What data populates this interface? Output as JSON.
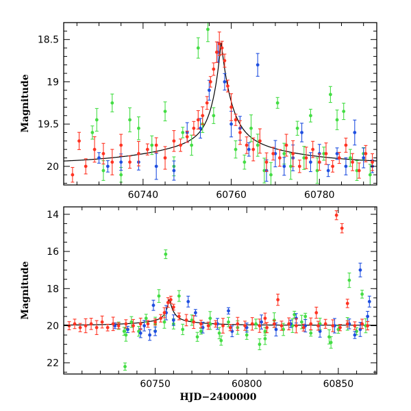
{
  "chart_data": [
    {
      "type": "scatter",
      "title": "",
      "xlabel": "",
      "ylabel": "Magnitude",
      "xlim": [
        60722,
        60793
      ],
      "ylim": [
        20.22,
        18.3
      ],
      "y_inverted": true,
      "grid": false,
      "x_ticks": [
        "60740",
        "60760",
        "60780"
      ],
      "y_ticks": [
        "18.5",
        "19",
        "19.5",
        "20"
      ],
      "colors": {
        "green": "#44dd44",
        "blue": "#1f4fe0",
        "red": "#ff3322",
        "model": "#000000"
      },
      "model_curve": {
        "baseline": 19.97,
        "peak_x": 60757.7,
        "peak_y": 18.52,
        "rise_tau": 1.9,
        "fall_tau": 2.3,
        "shoulder_amp": 0.42,
        "shoulder_tau": 14
      },
      "series": [
        {
          "color": "green",
          "x": [
            60728.5,
            60729.5,
            60731,
            60733,
            60735,
            60737,
            60739,
            60742,
            60745,
            60747,
            60749,
            60751,
            60752.5,
            60753.5,
            60754.7,
            60756,
            60761,
            60763,
            60764.5,
            60766,
            60767.5,
            60769,
            60770.5,
            60772,
            60773.5,
            60775,
            60776.5,
            60778,
            60779.5,
            60781,
            60782.5,
            60784,
            60785.5,
            60787,
            60788.5,
            60790,
            60791.5
          ],
          "y": [
            19.6,
            19.45,
            20.05,
            19.25,
            20.1,
            19.45,
            19.55,
            19.75,
            19.35,
            20.0,
            19.6,
            19.75,
            18.6,
            19.5,
            18.38,
            19.4,
            19.8,
            19.95,
            19.55,
            19.75,
            20.05,
            20.1,
            19.25,
            19.85,
            20.0,
            19.55,
            19.9,
            19.4,
            20.05,
            19.85,
            19.15,
            19.45,
            19.35,
            19.9,
            20.05,
            19.85,
            20.1
          ]
        },
        {
          "color": "blue",
          "x": [
            60730,
            60732,
            60735,
            60739,
            60743,
            60747,
            60750,
            60753,
            60755,
            60757,
            60758.5,
            60760,
            60762,
            60764,
            60766,
            60768,
            60770,
            60772,
            60774,
            60776,
            60778,
            60780,
            60782,
            60784,
            60786,
            60788,
            60790,
            60792
          ],
          "y": [
            19.9,
            20.0,
            19.95,
            19.95,
            20.0,
            20.05,
            19.6,
            19.55,
            19.1,
            18.65,
            19.0,
            19.5,
            19.55,
            19.8,
            18.8,
            20.05,
            19.85,
            20.0,
            19.9,
            19.6,
            19.95,
            19.85,
            20.05,
            19.85,
            20.0,
            19.6,
            19.9,
            20.0
          ]
        },
        {
          "color": "red",
          "x": [
            60724,
            60725.5,
            60727,
            60729,
            60731,
            60733,
            60735,
            60737,
            60739,
            60741,
            60743,
            60745,
            60747,
            60748.5,
            60750,
            60751.5,
            60752.5,
            60753.5,
            60754.5,
            60755.3,
            60756,
            60756.7,
            60757.3,
            60757.9,
            60758.5,
            60759.2,
            60760,
            60761,
            60762,
            60763.5,
            60765,
            60766.5,
            60768,
            60769.5,
            60771,
            60772.5,
            60774,
            60775.5,
            60777,
            60778.5,
            60780,
            60781.5,
            60783,
            60784.5,
            60786,
            60787.5,
            60789,
            60790.5,
            60792
          ],
          "y": [
            20.1,
            19.7,
            20.0,
            19.8,
            19.85,
            19.95,
            19.75,
            19.95,
            19.85,
            19.8,
            19.75,
            19.9,
            19.7,
            19.75,
            19.65,
            19.55,
            19.45,
            19.4,
            19.25,
            19.0,
            18.85,
            18.65,
            18.55,
            18.6,
            18.75,
            19.05,
            19.3,
            19.45,
            19.6,
            19.75,
            19.8,
            19.7,
            19.95,
            19.85,
            19.9,
            19.75,
            19.85,
            20.0,
            19.9,
            19.8,
            19.95,
            19.85,
            20.0,
            19.9,
            19.75,
            19.95,
            20.05,
            19.85,
            19.95
          ]
        }
      ]
    },
    {
      "type": "scatter",
      "title": "",
      "xlabel": "HJD−2400000",
      "ylabel": "Magnitude",
      "xlim": [
        60700,
        60871
      ],
      "ylim": [
        22.6,
        13.6
      ],
      "y_inverted": true,
      "grid": false,
      "x_ticks": [
        "60750",
        "60800",
        "60850"
      ],
      "y_ticks": [
        "14",
        "16",
        "18",
        "20",
        "22"
      ],
      "colors": {
        "green": "#44dd44",
        "blue": "#1f4fe0",
        "red": "#ff3322",
        "model": "#000000"
      },
      "model_curve": {
        "baseline": 19.97,
        "peak_x": 60757.7,
        "peak_y": 18.52,
        "rise_tau": 1.9,
        "fall_tau": 2.3,
        "shoulder_amp": 0.42,
        "shoulder_tau": 14
      },
      "series": [
        {
          "color": "green",
          "x": [
            60730,
            60734,
            60737,
            60741,
            60745,
            60750,
            60755,
            60760,
            60765,
            60770,
            60775,
            60780,
            60785,
            60790,
            60795,
            60800,
            60805,
            60810,
            60815,
            60820,
            60825,
            60830,
            60835,
            60840,
            60845,
            60850,
            60855,
            60860,
            60865,
            60733.5,
            60755.7,
            60763,
            60773,
            60786,
            60807,
            60826,
            60846,
            60856,
            60863,
            60733,
            60752,
            60780,
            60810,
            60832
          ],
          "y": [
            20.0,
            20.5,
            19.8,
            20.3,
            19.6,
            19.9,
            19.8,
            19.9,
            20.2,
            19.7,
            20.3,
            19.9,
            20.4,
            19.8,
            20.1,
            20.5,
            19.9,
            20.3,
            19.7,
            20.2,
            20.0,
            19.8,
            20.4,
            19.9,
            20.6,
            20.2,
            19.9,
            20.3,
            20.0,
            22.2,
            16.15,
            18.4,
            20.6,
            20.8,
            21.0,
            19.4,
            20.9,
            17.55,
            18.3,
            20.3,
            18.4,
            19.6,
            20.7,
            19.5
          ]
        },
        {
          "color": "blue",
          "x": [
            60728,
            60735,
            60742,
            60750,
            60756,
            60760,
            60768,
            60776,
            60784,
            60792,
            60800,
            60808,
            60816,
            60824,
            60832,
            60840,
            60848,
            60856,
            60862,
            60866,
            60744,
            60749,
            60772,
            60790,
            60827,
            60862,
            60867,
            60859,
            60747
          ],
          "y": [
            20.0,
            20.2,
            20.4,
            20.3,
            19.3,
            19.7,
            18.7,
            20.1,
            19.9,
            20.3,
            20.1,
            19.8,
            20.2,
            19.9,
            20.0,
            20.3,
            20.0,
            19.9,
            20.2,
            19.5,
            20.0,
            18.9,
            19.3,
            19.2,
            19.6,
            17.0,
            18.7,
            20.5,
            20.5
          ]
        },
        {
          "color": "red",
          "x": [
            60703,
            60706,
            60709,
            60712,
            60715,
            60718,
            60721,
            60724,
            60727,
            60730,
            60734,
            60738,
            60742,
            60746,
            60750,
            60753,
            60755,
            60757,
            60758.5,
            60760,
            60763,
            60767,
            60771,
            60775,
            60779,
            60783,
            60787,
            60791,
            60795,
            60799,
            60803,
            60807,
            60811,
            60815,
            60819,
            60823,
            60827,
            60831,
            60835,
            60839,
            60843,
            60847,
            60851,
            60855,
            60859,
            60863,
            60866,
            60849,
            60852,
            60817,
            60855,
            60810,
            60838
          ],
          "y": [
            20.0,
            19.9,
            20.1,
            20.0,
            19.9,
            20.1,
            19.8,
            20.1,
            19.9,
            20.0,
            19.9,
            20.0,
            19.9,
            19.9,
            19.8,
            19.6,
            19.3,
            18.75,
            18.6,
            19.0,
            19.5,
            19.7,
            19.8,
            19.9,
            20.0,
            19.9,
            20.0,
            20.1,
            19.9,
            20.0,
            19.9,
            20.0,
            20.1,
            19.9,
            20.0,
            19.9,
            20.0,
            20.1,
            19.9,
            20.0,
            19.9,
            20.0,
            20.1,
            19.9,
            20.0,
            19.9,
            20.0,
            14.05,
            14.75,
            18.6,
            18.8,
            19.6,
            19.3
          ]
        }
      ]
    }
  ]
}
